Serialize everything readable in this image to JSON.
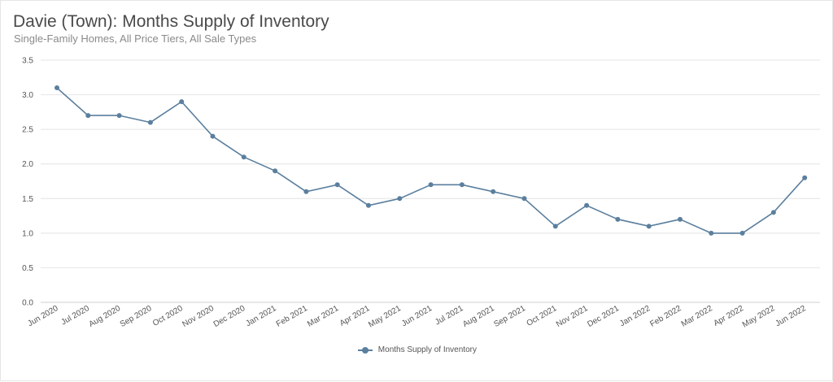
{
  "chart_data": {
    "type": "line",
    "title": "Davie (Town): Months Supply of Inventory",
    "subtitle": "Single-Family Homes, All Price Tiers, All Sale Types",
    "xlabel": "",
    "ylabel": "",
    "ylim": [
      0,
      3.5
    ],
    "yticks": [
      "0.0",
      "0.5",
      "1.0",
      "1.5",
      "2.0",
      "2.5",
      "3.0",
      "3.5"
    ],
    "categories": [
      "Jun 2020",
      "Jul 2020",
      "Aug 2020",
      "Sep 2020",
      "Oct 2020",
      "Nov 2020",
      "Dec 2020",
      "Jan 2021",
      "Feb 2021",
      "Mar 2021",
      "Apr 2021",
      "May 2021",
      "Jun 2021",
      "Jul 2021",
      "Aug 2021",
      "Sep 2021",
      "Oct 2021",
      "Nov 2021",
      "Dec 2021",
      "Jan 2022",
      "Feb 2022",
      "Mar 2022",
      "Apr 2022",
      "May 2022",
      "Jun 2022"
    ],
    "series": [
      {
        "name": "Months Supply of Inventory",
        "values": [
          3.1,
          2.7,
          2.7,
          2.6,
          2.9,
          2.4,
          2.1,
          1.9,
          1.6,
          1.7,
          1.4,
          1.5,
          1.7,
          1.7,
          1.6,
          1.5,
          1.1,
          1.4,
          1.2,
          1.1,
          1.2,
          1.0,
          1.0,
          1.3,
          1.8
        ],
        "color": "#5b7f9e"
      }
    ],
    "grid": true,
    "legend_position": "bottom-center"
  }
}
